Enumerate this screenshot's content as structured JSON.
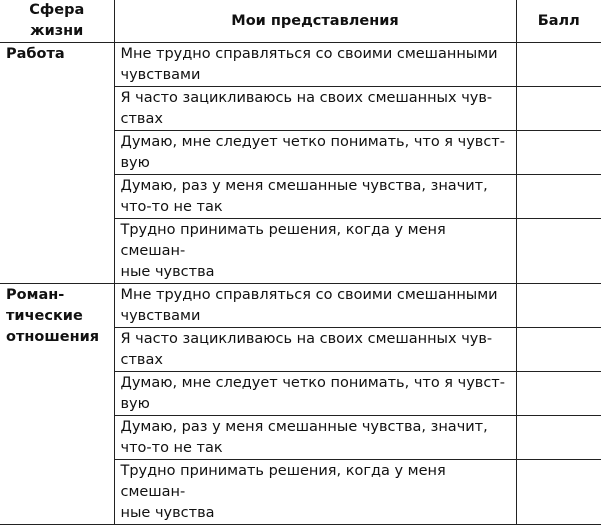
{
  "headers": {
    "sphere": "Сфера\nжизни",
    "beliefs": "Мои представления",
    "score": "Балл"
  },
  "groups": [
    {
      "sphere": "Работа",
      "items": [
        "Мне трудно справляться со своими смешанными\nчувствами",
        "Я часто зацикливаюсь на своих смешанных чув-\nствах",
        "Думаю, мне следует четко понимать, что я чувст-\nвую",
        "Думаю, раз у меня смешанные чувства, значит,\nчто-то не так",
        "Трудно принимать решения, когда у меня смешан-\nные чувства"
      ]
    },
    {
      "sphere": "Роман-\nтические\nотношения",
      "items": [
        "Мне трудно справляться со своими смешанными\nчувствами",
        "Я часто зацикливаюсь на своих смешанных чув-\nствах",
        "Думаю, мне следует четко понимать, что я чувст-\nвую",
        "Думаю, раз у меня смешанные чувства, значит,\nчто-то не так",
        "Трудно принимать решения, когда у меня смешан-\nные чувства"
      ]
    }
  ]
}
